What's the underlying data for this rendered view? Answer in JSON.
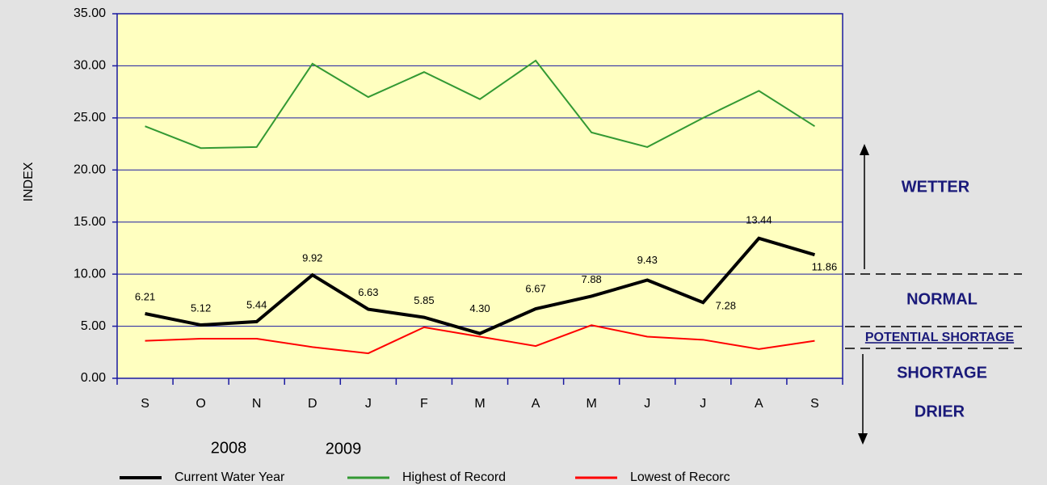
{
  "chart_data": {
    "type": "line",
    "y_label": "INDEX",
    "categories": [
      "S",
      "O",
      "N",
      "D",
      "J",
      "F",
      "M",
      "A",
      "M",
      "J",
      "J",
      "A",
      "S"
    ],
    "year_labels": [
      "2008",
      "2009"
    ],
    "series": [
      {
        "name": "Current Water Year",
        "color": "#000000",
        "values": [
          6.21,
          5.12,
          5.44,
          9.92,
          6.63,
          5.85,
          4.3,
          6.67,
          7.88,
          9.43,
          7.28,
          13.44,
          11.86
        ],
        "value_labels": [
          "6.21",
          "5.12",
          "5.44",
          "9.92",
          "6.63",
          "5.85",
          "4.30",
          "6.67",
          "7.88",
          "9.43",
          "7.28",
          "13.44",
          "11.86"
        ]
      },
      {
        "name": "Highest of Record",
        "color": "#339933",
        "values": [
          24.2,
          22.1,
          22.2,
          30.2,
          27.0,
          29.4,
          26.8,
          30.5,
          23.6,
          22.2,
          25.0,
          27.6,
          24.2
        ]
      },
      {
        "name": "Lowest of Recorc",
        "color": "#ff0000",
        "values": [
          3.6,
          3.8,
          3.8,
          3.0,
          2.4,
          4.9,
          4.0,
          3.1,
          5.1,
          4.0,
          3.7,
          2.8,
          3.6
        ]
      }
    ],
    "ylim": [
      0,
      35
    ],
    "yticks": [
      {
        "value": 0,
        "label": "0.00"
      },
      {
        "value": 5,
        "label": "5.00"
      },
      {
        "value": 10,
        "label": "10.00"
      },
      {
        "value": 15,
        "label": "15.00"
      },
      {
        "value": 20,
        "label": "20.00"
      },
      {
        "value": 25,
        "label": "25.00"
      },
      {
        "value": 30,
        "label": "30.00"
      },
      {
        "value": 35,
        "label": "35.00"
      }
    ],
    "grid": true,
    "annotations": [
      "WETTER",
      "NORMAL",
      "POTENTIAL SHORTAGE",
      "SHORTAGE",
      "DRIER"
    ]
  }
}
